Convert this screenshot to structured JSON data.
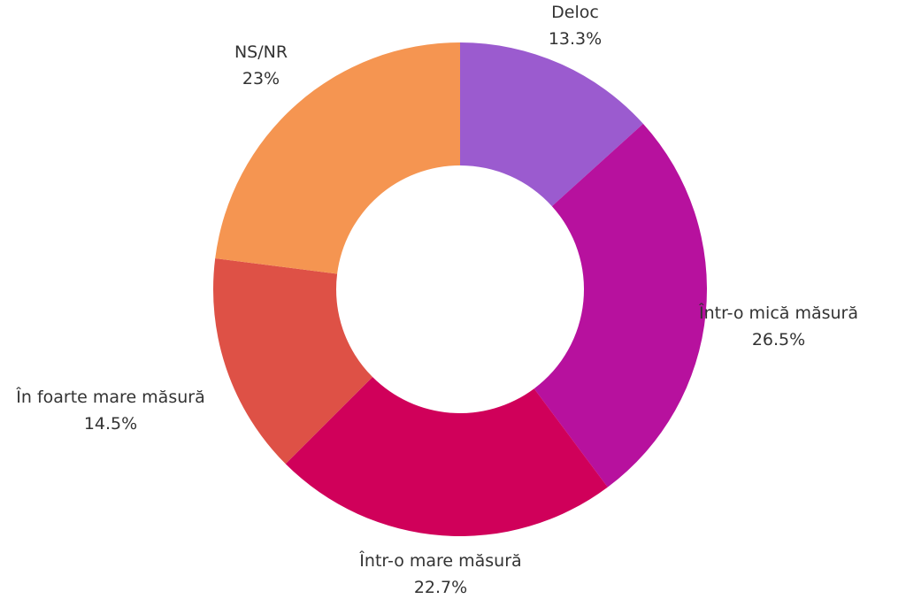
{
  "chart_data": {
    "type": "pie",
    "donut": true,
    "title": "",
    "legend": "none",
    "start": "top, clockwise",
    "slices": [
      {
        "label": "Deloc",
        "value": 13.3,
        "value_label": "13.3%",
        "color": "#9b5bcf"
      },
      {
        "label": "Într-o mică măsură",
        "value": 26.5,
        "value_label": "26.5%",
        "color": "#b7119e"
      },
      {
        "label": "Într-o mare măsură",
        "value": 22.7,
        "value_label": "22.7%",
        "color": "#d0005a"
      },
      {
        "label": "În foarte mare măsură",
        "value": 14.5,
        "value_label": "14.5%",
        "color": "#de5146"
      },
      {
        "label": "NS/NR",
        "value": 23,
        "value_label": "23%",
        "color": "#f59551"
      }
    ]
  }
}
